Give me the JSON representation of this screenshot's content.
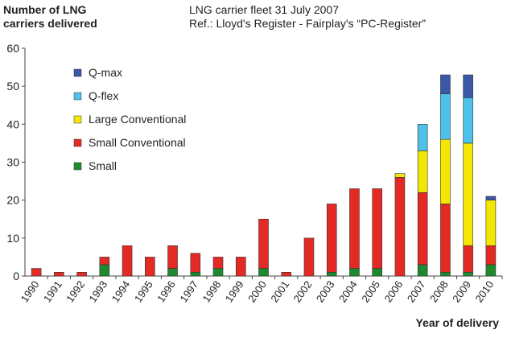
{
  "chart_data": {
    "type": "bar",
    "stacked": true,
    "title": "LNG carrier fleet 31 July 2007",
    "subtitle": "Ref.: Lloyd's Register - Fairplay's “PC-Register”",
    "ylabel": "Number of LNG carriers delivered",
    "xlabel": "Year of delivery",
    "ylim": [
      0,
      60
    ],
    "yticks": [
      0,
      10,
      20,
      30,
      40,
      50,
      60
    ],
    "grid": false,
    "legend": "top-left",
    "categories": [
      "1990",
      "1991",
      "1992",
      "1993",
      "1994",
      "1995",
      "1996",
      "1997",
      "1998",
      "1999",
      "2000",
      "2001",
      "2002",
      "2003",
      "2004",
      "2005",
      "2006",
      "2007",
      "2008",
      "2009",
      "2010"
    ],
    "series": [
      {
        "name": "Small",
        "color": "#1e8a2e",
        "values": [
          0,
          0,
          0,
          3,
          0,
          0,
          2,
          1,
          2,
          0,
          2,
          0,
          0,
          1,
          2,
          2,
          0,
          3,
          1,
          1,
          3
        ]
      },
      {
        "name": "Small Conventional",
        "color": "#e32a24",
        "values": [
          2,
          1,
          1,
          2,
          8,
          5,
          6,
          5,
          3,
          5,
          13,
          1,
          10,
          18,
          21,
          21,
          26,
          19,
          18,
          7,
          5
        ]
      },
      {
        "name": "Large Conventional",
        "color": "#f3e600",
        "values": [
          0,
          0,
          0,
          0,
          0,
          0,
          0,
          0,
          0,
          0,
          0,
          0,
          0,
          0,
          0,
          0,
          1,
          11,
          17,
          27,
          12
        ]
      },
      {
        "name": "Q-flex",
        "color": "#4ec1ea",
        "values": [
          0,
          0,
          0,
          0,
          0,
          0,
          0,
          0,
          0,
          0,
          0,
          0,
          0,
          0,
          0,
          0,
          0,
          7,
          12,
          12,
          0
        ]
      },
      {
        "name": "Q-max",
        "color": "#3a57a8",
        "values": [
          0,
          0,
          0,
          0,
          0,
          0,
          0,
          0,
          0,
          0,
          0,
          0,
          0,
          0,
          0,
          0,
          0,
          0,
          5,
          6,
          1
        ]
      }
    ]
  }
}
